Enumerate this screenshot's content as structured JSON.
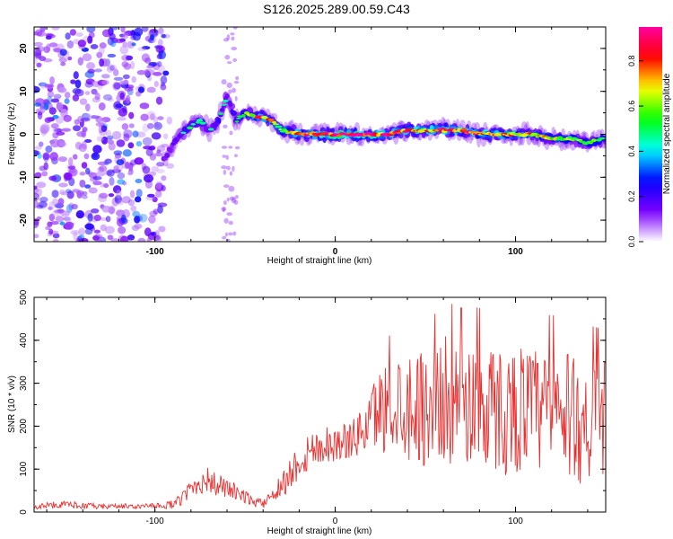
{
  "figure": {
    "title": "S126.2025.289.00.59.C43"
  },
  "chart_data": [
    {
      "type": "heatmap",
      "xlabel": "Height of straight line (km)",
      "ylabel": "Frequency (Hz)",
      "xlim": [
        -167,
        150
      ],
      "ylim": [
        -25,
        25
      ],
      "x_ticks": [
        -100,
        0,
        100
      ],
      "y_ticks": [
        -20,
        -10,
        0,
        10,
        20
      ],
      "colorbar": {
        "label": "Normalized spectral amplitude",
        "range": [
          0,
          0.95
        ],
        "ticks": [
          0.0,
          0.2,
          0.4,
          0.6,
          0.8
        ],
        "colormap": [
          "#ffffff",
          "#7b00ff",
          "#0000ff",
          "#00ffff",
          "#00ff00",
          "#ffff00",
          "#ff0000",
          "#ff00a0"
        ]
      },
      "noise_region_km": [
        -167,
        -95
      ],
      "ridge": {
        "x": [
          -95,
          -90,
          -85,
          -80,
          -75,
          -70,
          -65,
          -60,
          -55,
          -50,
          -45,
          -40,
          -35,
          -30,
          -20,
          -10,
          0,
          10,
          20,
          30,
          40,
          50,
          60,
          70,
          80,
          90,
          100,
          110,
          120,
          130,
          140,
          150
        ],
        "freq_hz": [
          -6,
          -2,
          0,
          2,
          3,
          1,
          3,
          9,
          3,
          5,
          4,
          4,
          3,
          1,
          0,
          0,
          0,
          0,
          0,
          0,
          1,
          1,
          1,
          1,
          0,
          0,
          0,
          0,
          -1,
          -1,
          -2,
          -1
        ],
        "amplitude": [
          0.3,
          0.35,
          0.4,
          0.45,
          0.45,
          0.4,
          0.45,
          0.4,
          0.5,
          0.55,
          0.75,
          0.85,
          0.75,
          0.6,
          0.8,
          0.9,
          0.95,
          0.95,
          0.95,
          0.85,
          0.8,
          0.8,
          0.85,
          0.9,
          0.8,
          0.8,
          0.75,
          0.7,
          0.65,
          0.6,
          0.6,
          0.5
        ]
      }
    },
    {
      "type": "line",
      "xlabel": "Height of straight line (km)",
      "ylabel": "SNR (10 * v/v)",
      "xlim": [
        -167,
        150
      ],
      "ylim": [
        0,
        500
      ],
      "x_ticks": [
        -100,
        0,
        100
      ],
      "y_ticks": [
        0,
        100,
        200,
        300,
        400,
        500
      ],
      "color": "#e83030",
      "series": [
        {
          "name": "SNR",
          "x": [
            -167,
            -160,
            -150,
            -140,
            -130,
            -120,
            -110,
            -100,
            -90,
            -85,
            -80,
            -75,
            -70,
            -65,
            -60,
            -55,
            -50,
            -45,
            -40,
            -35,
            -30,
            -25,
            -20,
            -15,
            -10,
            -5,
            0,
            5,
            10,
            15,
            20,
            25,
            30,
            35,
            40,
            45,
            50,
            55,
            60,
            65,
            70,
            75,
            80,
            85,
            90,
            95,
            100,
            105,
            110,
            115,
            120,
            125,
            130,
            135,
            140,
            145,
            150
          ],
          "values": [
            12,
            15,
            18,
            15,
            12,
            14,
            13,
            14,
            18,
            30,
            55,
            70,
            75,
            60,
            55,
            45,
            35,
            25,
            18,
            45,
            60,
            90,
            120,
            140,
            150,
            160,
            155,
            165,
            170,
            190,
            220,
            240,
            245,
            260,
            250,
            255,
            240,
            250,
            260,
            260,
            250,
            255,
            250,
            245,
            240,
            230,
            240,
            245,
            235,
            230,
            235,
            225,
            220,
            215,
            210,
            205,
            200
          ],
          "spread": [
            6,
            8,
            8,
            8,
            6,
            6,
            6,
            6,
            10,
            15,
            25,
            30,
            30,
            30,
            25,
            20,
            15,
            12,
            10,
            20,
            30,
            40,
            45,
            50,
            45,
            45,
            40,
            45,
            45,
            60,
            80,
            100,
            110,
            120,
            130,
            130,
            140,
            140,
            150,
            150,
            150,
            150,
            150,
            150,
            150,
            150,
            150,
            150,
            150,
            150,
            150,
            150,
            150,
            150,
            150,
            150,
            150
          ]
        }
      ]
    }
  ]
}
